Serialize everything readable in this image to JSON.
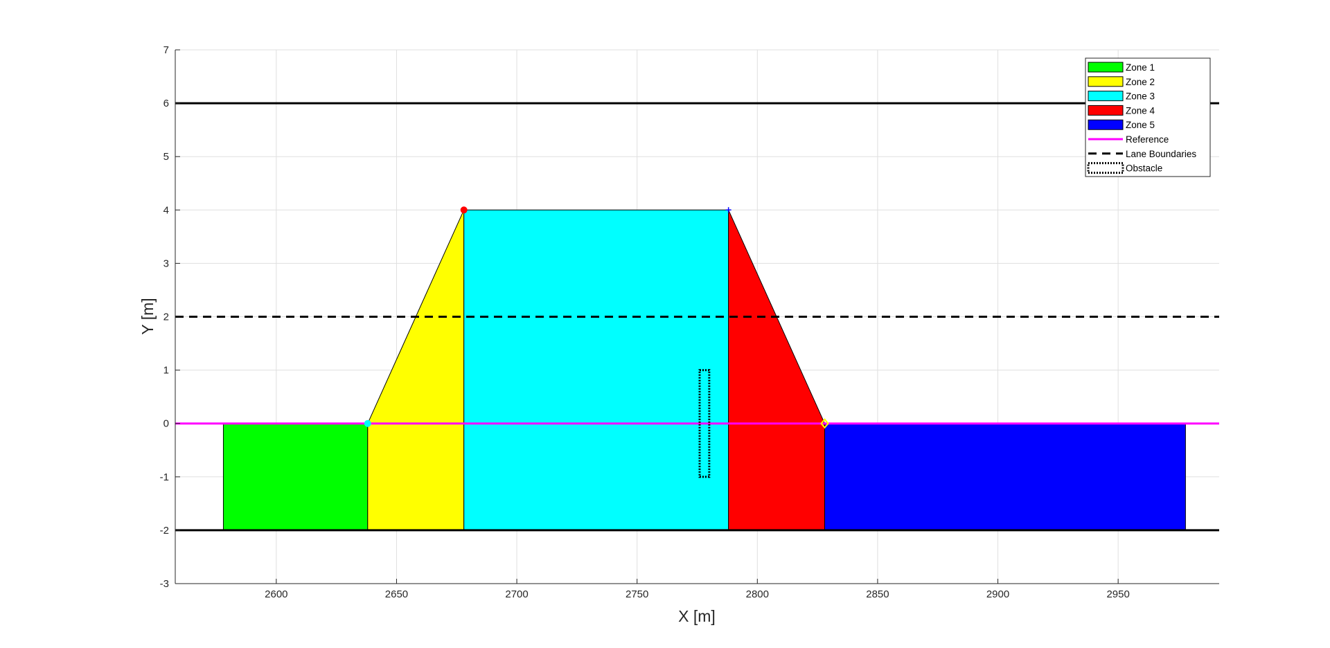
{
  "chart_data": {
    "type": "area",
    "xlabel": "X [m]",
    "ylabel": "Y [m]",
    "xlim": [
      2558,
      2992
    ],
    "ylim": [
      -3,
      7
    ],
    "x_ticks": [
      2600,
      2650,
      2700,
      2750,
      2800,
      2850,
      2900,
      2950
    ],
    "y_ticks": [
      -3,
      -2,
      -1,
      0,
      1,
      2,
      3,
      4,
      5,
      6,
      7
    ],
    "grid": true,
    "legend_position": "top-right",
    "zones": [
      {
        "name": "Zone 1",
        "color": "#00ff00",
        "points": [
          [
            2578,
            -2
          ],
          [
            2638,
            -2
          ],
          [
            2638,
            0
          ],
          [
            2578,
            0
          ]
        ]
      },
      {
        "name": "Zone 2",
        "color": "#ffff00",
        "points": [
          [
            2638,
            -2
          ],
          [
            2678,
            -2
          ],
          [
            2678,
            4
          ],
          [
            2638,
            0
          ]
        ]
      },
      {
        "name": "Zone 3",
        "color": "#00ffff",
        "points": [
          [
            2678,
            -2
          ],
          [
            2788,
            -2
          ],
          [
            2788,
            4
          ],
          [
            2678,
            4
          ]
        ]
      },
      {
        "name": "Zone 4",
        "color": "#ff0000",
        "points": [
          [
            2788,
            -2
          ],
          [
            2828,
            -2
          ],
          [
            2828,
            0
          ],
          [
            2788,
            4
          ]
        ]
      },
      {
        "name": "Zone 5",
        "color": "#0000ff",
        "points": [
          [
            2828,
            -2
          ],
          [
            2978,
            -2
          ],
          [
            2978,
            0
          ],
          [
            2828,
            0
          ]
        ]
      }
    ],
    "reference": {
      "name": "Reference",
      "color": "#ff00ff",
      "y": 0
    },
    "lane_boundaries": {
      "name": "Lane Boundaries",
      "dashed_y": [
        2
      ],
      "solid_y": [
        -2,
        6
      ]
    },
    "obstacle": {
      "name": "Obstacle",
      "x": [
        2776,
        2780
      ],
      "y": [
        -1,
        1
      ]
    },
    "markers": [
      {
        "name": "zone-3-start-marker",
        "x": 2678,
        "y": 4,
        "color": "#ff0000",
        "shape": "circle"
      },
      {
        "name": "zone-3-end-marker",
        "x": 2788,
        "y": 4,
        "color": "#0000ff",
        "shape": "plus"
      },
      {
        "name": "zone-2-start-marker",
        "x": 2638,
        "y": 0,
        "color": "#00ffff",
        "shape": "circle"
      },
      {
        "name": "zone-5-start-marker",
        "x": 2828,
        "y": 0,
        "color": "#ffff00",
        "shape": "diamond"
      }
    ],
    "legend": [
      "Zone 1",
      "Zone 2",
      "Zone 3",
      "Zone 4",
      "Zone 5",
      "Reference",
      "Lane Boundaries",
      "Obstacle"
    ]
  }
}
